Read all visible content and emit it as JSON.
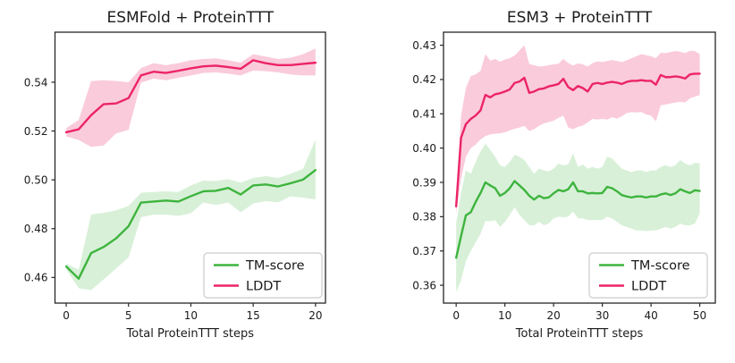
{
  "figure": {
    "background": "#ffffff",
    "text_color": "#1a1a1a",
    "spine_color": "#262626",
    "legend_border_color": "#cccccc"
  },
  "chart_data": [
    {
      "type": "line",
      "title": "ESMFold + ProteinTTT",
      "xlabel": "Total ProteinTTT steps",
      "ylabel": "",
      "grid": false,
      "xlim": [
        -0.9,
        20.8
      ],
      "ylim": [
        0.4495,
        0.5605
      ],
      "xticks": [
        0,
        5,
        10,
        15,
        20
      ],
      "xticklabels": [
        "0",
        "5",
        "10",
        "15",
        "20"
      ],
      "yticks": [
        0.46,
        0.48,
        0.5,
        0.52,
        0.54
      ],
      "yticklabels": [
        "0.46",
        "0.48",
        "0.50",
        "0.52",
        "0.54"
      ],
      "legend": {
        "location": "lower right",
        "entries": [
          "TM-score",
          "LDDT"
        ]
      },
      "x_start": 0,
      "x_step": 1,
      "series": [
        {
          "name": "TM-score",
          "color": "#3eb43e",
          "band_color": "rgba(62,180,62,0.20)",
          "values": [
            0.4645,
            0.4595,
            0.47,
            0.4725,
            0.476,
            0.481,
            0.4907,
            0.4911,
            0.4915,
            0.4911,
            0.4933,
            0.4953,
            0.4955,
            0.4967,
            0.494,
            0.4977,
            0.4981,
            0.4973,
            0.4986,
            0.5001,
            0.504
          ],
          "upper": [
            0.4657,
            0.4632,
            0.4858,
            0.4865,
            0.4875,
            0.4893,
            0.4947,
            0.495,
            0.4953,
            0.495,
            0.4977,
            0.4997,
            0.4995,
            0.5003,
            0.4988,
            0.5008,
            0.5015,
            0.5008,
            0.5025,
            0.5045,
            0.5165
          ],
          "lower": [
            0.4633,
            0.4556,
            0.4548,
            0.4592,
            0.4637,
            0.4682,
            0.4847,
            0.4857,
            0.4857,
            0.4852,
            0.4863,
            0.4907,
            0.4897,
            0.4907,
            0.4867,
            0.4903,
            0.4913,
            0.4907,
            0.4933,
            0.4927,
            0.492
          ]
        },
        {
          "name": "LDDT",
          "color": "#ec2467",
          "band_color": "rgba(236,36,103,0.24)",
          "values": [
            0.5195,
            0.5207,
            0.5265,
            0.531,
            0.5313,
            0.5335,
            0.5428,
            0.5443,
            0.5438,
            0.5447,
            0.5457,
            0.5465,
            0.5468,
            0.5462,
            0.5455,
            0.549,
            0.5478,
            0.547,
            0.547,
            0.5475,
            0.548
          ],
          "upper": [
            0.5212,
            0.5245,
            0.5405,
            0.5408,
            0.5405,
            0.54,
            0.5458,
            0.5478,
            0.547,
            0.5478,
            0.549,
            0.5495,
            0.5498,
            0.549,
            0.548,
            0.5515,
            0.5505,
            0.5495,
            0.55,
            0.5515,
            0.5538
          ],
          "lower": [
            0.5178,
            0.5163,
            0.5135,
            0.514,
            0.519,
            0.5205,
            0.5398,
            0.5415,
            0.5408,
            0.5418,
            0.5428,
            0.5438,
            0.544,
            0.5435,
            0.5428,
            0.5448,
            0.5445,
            0.544,
            0.5432,
            0.5428,
            0.5428
          ]
        }
      ]
    },
    {
      "type": "line",
      "title": "ESM3 + ProteinTTT",
      "xlabel": "Total ProteinTTT steps",
      "ylabel": "",
      "grid": false,
      "xlim": [
        -2.6,
        53.2
      ],
      "ylim": [
        0.3548,
        0.4338
      ],
      "xticks": [
        0,
        10,
        20,
        30,
        40,
        50
      ],
      "xticklabels": [
        "0",
        "10",
        "20",
        "30",
        "40",
        "50"
      ],
      "yticks": [
        0.36,
        0.37,
        0.38,
        0.39,
        0.4,
        0.41,
        0.42,
        0.43
      ],
      "yticklabels": [
        "0.36",
        "0.37",
        "0.38",
        "0.39",
        "0.40",
        "0.41",
        "0.42",
        "0.43"
      ],
      "legend": {
        "location": "lower right",
        "entries": [
          "TM-score",
          "LDDT"
        ]
      },
      "x_start": 0,
      "x_step": 1,
      "series": [
        {
          "name": "TM-score",
          "color": "#3eb43e",
          "band_color": "rgba(62,180,62,0.20)",
          "values": [
            0.368,
            0.3743,
            0.3804,
            0.3813,
            0.3843,
            0.3869,
            0.39,
            0.3891,
            0.3883,
            0.3861,
            0.3869,
            0.3883,
            0.3904,
            0.3891,
            0.3878,
            0.3861,
            0.385,
            0.3861,
            0.3854,
            0.3856,
            0.3868,
            0.3878,
            0.3874,
            0.388,
            0.39,
            0.3874,
            0.3874,
            0.3868,
            0.3869,
            0.3868,
            0.3869,
            0.3887,
            0.3883,
            0.3874,
            0.3863,
            0.3859,
            0.3856,
            0.3859,
            0.3859,
            0.3856,
            0.3859,
            0.3859,
            0.3865,
            0.3868,
            0.3863,
            0.3868,
            0.388,
            0.3874,
            0.3869,
            0.3877,
            0.3875
          ],
          "upper": [
            0.378,
            0.387,
            0.3935,
            0.3925,
            0.396,
            0.399,
            0.4013,
            0.3995,
            0.3975,
            0.395,
            0.3945,
            0.396,
            0.398,
            0.3975,
            0.3965,
            0.3945,
            0.3925,
            0.394,
            0.3935,
            0.3932,
            0.394,
            0.3955,
            0.395,
            0.3952,
            0.3985,
            0.3945,
            0.3952,
            0.394,
            0.3945,
            0.394,
            0.3945,
            0.3975,
            0.397,
            0.3955,
            0.394,
            0.3935,
            0.393,
            0.3935,
            0.3935,
            0.393,
            0.3935,
            0.3935,
            0.3945,
            0.395,
            0.3945,
            0.395,
            0.3965,
            0.3955,
            0.395,
            0.3957,
            0.3955
          ],
          "lower": [
            0.358,
            0.3615,
            0.367,
            0.37,
            0.3725,
            0.375,
            0.3787,
            0.3787,
            0.379,
            0.377,
            0.3785,
            0.3805,
            0.3828,
            0.3805,
            0.379,
            0.3775,
            0.3775,
            0.3785,
            0.3775,
            0.378,
            0.3795,
            0.38,
            0.3798,
            0.38,
            0.3815,
            0.3795,
            0.3795,
            0.379,
            0.379,
            0.379,
            0.379,
            0.38,
            0.3795,
            0.3785,
            0.3775,
            0.377,
            0.3765,
            0.376,
            0.376,
            0.3758,
            0.376,
            0.376,
            0.3765,
            0.377,
            0.3765,
            0.377,
            0.378,
            0.3775,
            0.3775,
            0.378,
            0.381
          ]
        },
        {
          "name": "LDDT",
          "color": "#ec2467",
          "band_color": "rgba(236,36,103,0.24)",
          "values": [
            0.383,
            0.403,
            0.407,
            0.4085,
            0.4095,
            0.411,
            0.4155,
            0.4148,
            0.4157,
            0.416,
            0.4165,
            0.4171,
            0.419,
            0.4194,
            0.4205,
            0.4161,
            0.4165,
            0.4172,
            0.4174,
            0.418,
            0.4183,
            0.4187,
            0.4202,
            0.4178,
            0.4169,
            0.4181,
            0.4175,
            0.4165,
            0.4187,
            0.419,
            0.4187,
            0.4191,
            0.4193,
            0.4191,
            0.4187,
            0.4193,
            0.4196,
            0.4196,
            0.4198,
            0.4196,
            0.4196,
            0.4185,
            0.4213,
            0.4207,
            0.4207,
            0.4209,
            0.4207,
            0.4203,
            0.4215,
            0.4217,
            0.4217
          ],
          "upper": [
            0.3855,
            0.4095,
            0.4175,
            0.421,
            0.4215,
            0.4225,
            0.4274,
            0.4255,
            0.426,
            0.4252,
            0.4258,
            0.4262,
            0.427,
            0.4285,
            0.43,
            0.4245,
            0.4242,
            0.4238,
            0.4239,
            0.4242,
            0.4244,
            0.4246,
            0.426,
            0.4248,
            0.4241,
            0.4247,
            0.4244,
            0.4238,
            0.4248,
            0.4253,
            0.4251,
            0.4254,
            0.4257,
            0.4254,
            0.4251,
            0.4256,
            0.4262,
            0.4268,
            0.4274,
            0.4271,
            0.4268,
            0.4262,
            0.4278,
            0.4277,
            0.428,
            0.4283,
            0.4281,
            0.4277,
            0.4284,
            0.4283,
            0.4274
          ],
          "lower": [
            0.381,
            0.391,
            0.3975,
            0.4,
            0.401,
            0.4025,
            0.4035,
            0.404,
            0.4042,
            0.4043,
            0.4046,
            0.4052,
            0.4056,
            0.406,
            0.4065,
            0.405,
            0.4055,
            0.4065,
            0.4072,
            0.4076,
            0.408,
            0.4088,
            0.4095,
            0.406,
            0.4055,
            0.4062,
            0.4066,
            0.4075,
            0.4085,
            0.4083,
            0.4085,
            0.4083,
            0.409,
            0.4086,
            0.4093,
            0.4102,
            0.4105,
            0.4104,
            0.4105,
            0.4098,
            0.4095,
            0.4078,
            0.4125,
            0.4127,
            0.413,
            0.4133,
            0.4135,
            0.4133,
            0.4145,
            0.415,
            0.4155
          ]
        }
      ]
    }
  ]
}
